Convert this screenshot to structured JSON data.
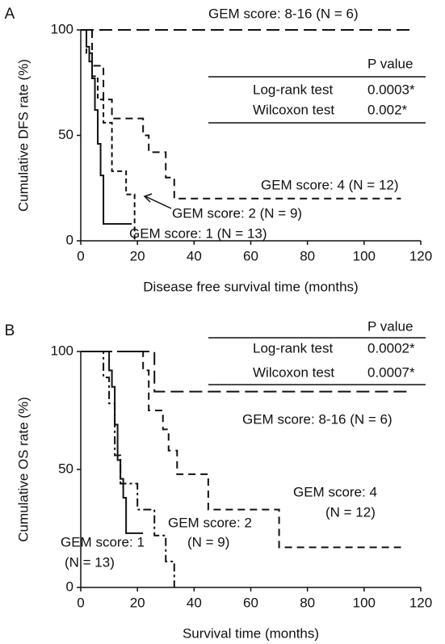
{
  "chart_data": [
    {
      "type": "line",
      "panel": "A",
      "xlabel": "Disease free survival time (months)",
      "ylabel": "Cumulative DFS rate (%)",
      "xlim": [
        0,
        120
      ],
      "xticks": [
        0,
        20,
        40,
        60,
        80,
        100,
        120
      ],
      "ylim": [
        0,
        100
      ],
      "yticks": [
        0,
        50,
        100
      ],
      "step": true,
      "series": [
        {
          "name": "GEM score: 8-16 (N = 6)",
          "color": "#111111",
          "style": "long-dash",
          "x": [
            0,
            116
          ],
          "values": [
            100,
            100
          ]
        },
        {
          "name": "GEM score: 4 (N = 12)",
          "color": "#111111",
          "style": "dash",
          "x": [
            0,
            4,
            4,
            8,
            8,
            11,
            11,
            22,
            22,
            24,
            24,
            30,
            30,
            33,
            33,
            113
          ],
          "values": [
            100,
            100,
            83,
            83,
            67,
            67,
            58,
            58,
            50,
            50,
            42,
            42,
            30,
            30,
            20,
            20
          ]
        },
        {
          "name": "GEM score: 2 (N = 9)",
          "color": "#111111",
          "style": "short-dash",
          "x": [
            0,
            2,
            2,
            4,
            4,
            6,
            6,
            8,
            8,
            11,
            11,
            16,
            16,
            19,
            19
          ],
          "values": [
            100,
            100,
            89,
            89,
            78,
            78,
            67,
            67,
            56,
            56,
            33,
            33,
            22,
            22,
            0
          ]
        },
        {
          "name": "GEM score: 1 (N = 13)",
          "color": "#111111",
          "style": "solid",
          "x": [
            0,
            2,
            2,
            3,
            3,
            4,
            4,
            5,
            5,
            6,
            6,
            7,
            7,
            8,
            8,
            18
          ],
          "values": [
            100,
            100,
            92,
            92,
            85,
            85,
            77,
            77,
            62,
            62,
            46,
            46,
            31,
            31,
            8,
            8
          ]
        }
      ],
      "stats_table": {
        "header": "P value",
        "rows": [
          [
            "Log-rank test",
            "0.0003*"
          ],
          [
            "Wilcoxon test",
            "0.002*"
          ]
        ]
      }
    },
    {
      "type": "line",
      "panel": "B",
      "xlabel": "Survival time (months)",
      "ylabel": "Cumulative OS rate (%)",
      "xlim": [
        0,
        120
      ],
      "xticks": [
        0,
        20,
        40,
        60,
        80,
        100,
        120
      ],
      "ylim": [
        0,
        100
      ],
      "yticks": [
        0,
        50,
        100
      ],
      "step": true,
      "series": [
        {
          "color": "#111111",
          "style": "long-dash",
          "x": [
            0,
            26,
            26,
            115
          ],
          "values": [
            100,
            100,
            83,
            83
          ]
        },
        {
          "color": "#111111",
          "style": "dash",
          "x": [
            0,
            22,
            22,
            24,
            24,
            29,
            29,
            31,
            31,
            34,
            34,
            45,
            45,
            70,
            70,
            113
          ],
          "values": [
            100,
            100,
            92,
            92,
            75,
            75,
            67,
            67,
            58,
            58,
            48,
            48,
            33,
            33,
            17,
            17
          ]
        },
        {
          "color": "#111111",
          "style": "dash-dot",
          "x": [
            0,
            8,
            8,
            10,
            10,
            12,
            12,
            14,
            14,
            20,
            20,
            26,
            26,
            30,
            30,
            33,
            33
          ],
          "values": [
            100,
            100,
            89,
            89,
            78,
            78,
            56,
            56,
            44,
            44,
            33,
            33,
            22,
            22,
            11,
            11,
            0
          ]
        },
        {
          "color": "#111111",
          "style": "solid",
          "x": [
            0,
            10,
            10,
            11,
            11,
            12,
            12,
            13,
            13,
            14,
            14,
            15,
            15,
            16,
            16,
            22
          ],
          "values": [
            100,
            100,
            92,
            92,
            85,
            85,
            69,
            69,
            54,
            54,
            46,
            46,
            38,
            38,
            23,
            23
          ]
        }
      ],
      "annotations": [
        "GEM score: 8-16 (N = 6)",
        "GEM score: 4",
        "(N = 12)",
        "GEM score: 2",
        "(N = 9)",
        "GEM score: 1",
        "(N = 13)"
      ],
      "stats_table": {
        "header": "P value",
        "rows": [
          [
            "Log-rank test",
            "0.0002*"
          ],
          [
            "Wilcoxon test",
            "0.0007*"
          ]
        ]
      }
    }
  ]
}
